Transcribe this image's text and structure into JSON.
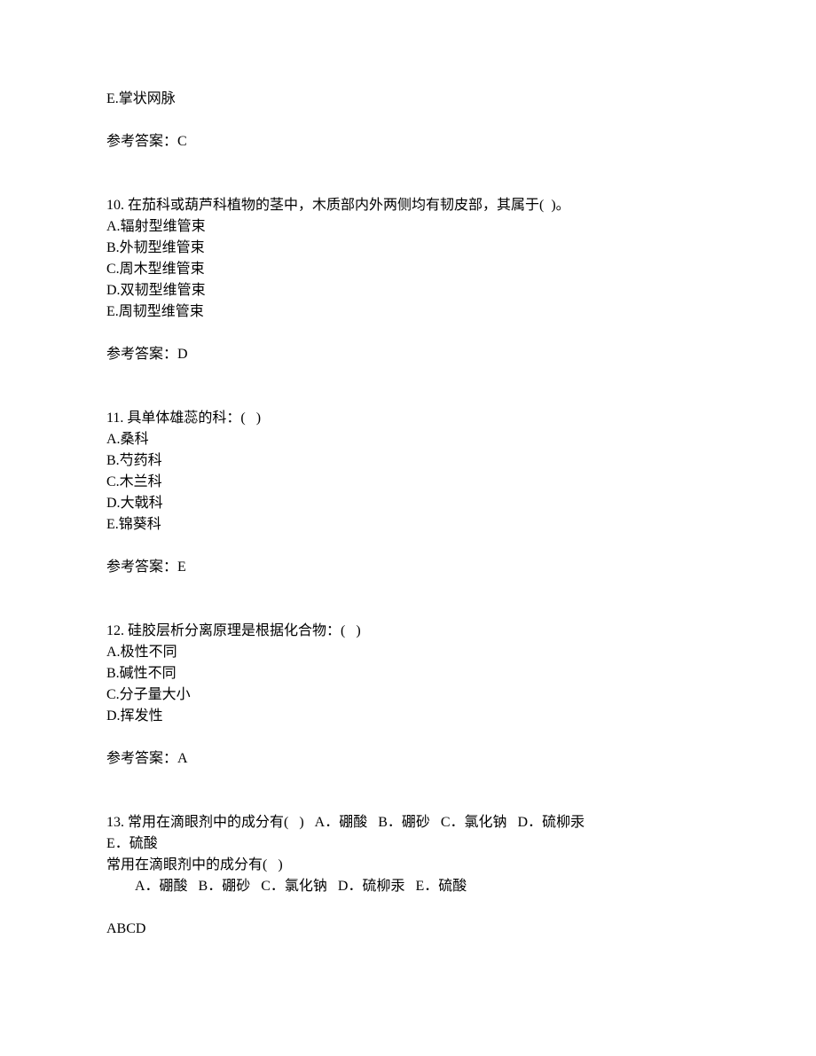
{
  "orphan_option": {
    "label": "E.",
    "text": "掌状网脉"
  },
  "orphan_answer": {
    "label": "参考答案：",
    "value": "C"
  },
  "q10": {
    "number": "10.",
    "stem": "在茄科或葫芦科植物的茎中，木质部内外两侧均有韧皮部，其属于(  )。",
    "options": [
      {
        "label": "A.",
        "text": "辐射型维管束"
      },
      {
        "label": "B.",
        "text": "外韧型维管束"
      },
      {
        "label": "C.",
        "text": "周木型维管束"
      },
      {
        "label": "D.",
        "text": "双韧型维管束"
      },
      {
        "label": "E.",
        "text": "周韧型维管束"
      }
    ],
    "answer_label": "参考答案：",
    "answer_value": "D"
  },
  "q11": {
    "number": "11.",
    "stem": "具单体雄蕊的科：(   )",
    "options": [
      {
        "label": "A.",
        "text": "桑科"
      },
      {
        "label": "B.",
        "text": "芍药科"
      },
      {
        "label": "C.",
        "text": "木兰科"
      },
      {
        "label": "D.",
        "text": "大戟科"
      },
      {
        "label": "E.",
        "text": "锦葵科"
      }
    ],
    "answer_label": "参考答案：",
    "answer_value": "E"
  },
  "q12": {
    "number": "12.",
    "stem": "硅胶层析分离原理是根据化合物：(   )",
    "options": [
      {
        "label": "A.",
        "text": "极性不同"
      },
      {
        "label": "B.",
        "text": "碱性不同"
      },
      {
        "label": "C.",
        "text": "分子量大小"
      },
      {
        "label": "D.",
        "text": "挥发性"
      }
    ],
    "answer_label": "参考答案：",
    "answer_value": "A"
  },
  "q13": {
    "number": "13.",
    "stem_line1": "常用在滴眼剂中的成分有(   )   A．硼酸   B．硼砂   C．氯化钠   D．硫柳汞",
    "stem_line2": "E．硫酸",
    "repeat_line": "常用在滴眼剂中的成分有(   )",
    "options_line": "A．硼酸   B．硼砂   C．氯化钠   D．硫柳汞   E．硫酸",
    "answer_value": "ABCD"
  }
}
